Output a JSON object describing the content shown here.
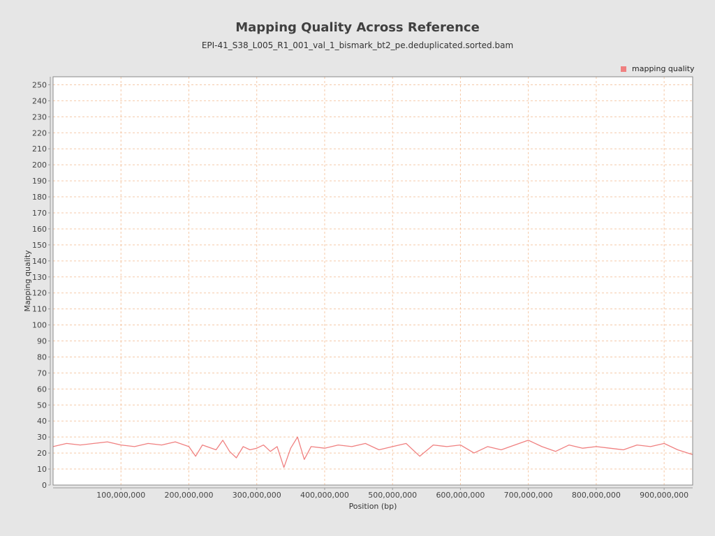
{
  "chart_data": {
    "type": "line",
    "title": "Mapping Quality Across Reference",
    "subtitle": "EPI-41_S38_L005_R1_001_val_1_bismark_bt2_pe.deduplicated.sorted.bam",
    "xlabel": "Position (bp)",
    "ylabel": "Mapping quality",
    "xlim": [
      0,
      942000000
    ],
    "ylim": [
      0,
      255
    ],
    "x_ticks": [
      100000000,
      200000000,
      300000000,
      400000000,
      500000000,
      600000000,
      700000000,
      800000000,
      900000000
    ],
    "x_tick_labels": [
      "100,000,000",
      "200,000,000",
      "300,000,000",
      "400,000,000",
      "500,000,000",
      "600,000,000",
      "700,000,000",
      "800,000,000",
      "900,000,000"
    ],
    "y_ticks": [
      0,
      10,
      20,
      30,
      40,
      50,
      60,
      70,
      80,
      90,
      100,
      110,
      120,
      130,
      140,
      150,
      160,
      170,
      180,
      190,
      200,
      210,
      220,
      230,
      240,
      250
    ],
    "y_tick_labels": [
      "0",
      "10",
      "20",
      "30",
      "40",
      "50",
      "60",
      "70",
      "80",
      "90",
      "100",
      "110",
      "120",
      "130",
      "140",
      "150",
      "160",
      "170",
      "180",
      "190",
      "200",
      "210",
      "220",
      "230",
      "240",
      "250"
    ],
    "grid": true,
    "legend_position": "top-right",
    "series": [
      {
        "name": "mapping quality",
        "color": "#f08080",
        "x": [
          0,
          20000000,
          40000000,
          60000000,
          80000000,
          100000000,
          120000000,
          140000000,
          160000000,
          180000000,
          200000000,
          210000000,
          220000000,
          240000000,
          250000000,
          260000000,
          270000000,
          280000000,
          290000000,
          300000000,
          310000000,
          320000000,
          330000000,
          340000000,
          350000000,
          360000000,
          370000000,
          380000000,
          400000000,
          420000000,
          440000000,
          460000000,
          480000000,
          500000000,
          520000000,
          540000000,
          560000000,
          580000000,
          600000000,
          620000000,
          640000000,
          660000000,
          680000000,
          700000000,
          720000000,
          740000000,
          760000000,
          780000000,
          800000000,
          820000000,
          840000000,
          860000000,
          880000000,
          900000000,
          920000000,
          942000000
        ],
        "y": [
          24,
          26,
          25,
          26,
          27,
          25,
          24,
          26,
          25,
          27,
          24,
          18,
          25,
          22,
          28,
          21,
          17,
          24,
          22,
          23,
          25,
          21,
          24,
          11,
          23,
          30,
          16,
          24,
          23,
          25,
          24,
          26,
          22,
          24,
          26,
          18,
          25,
          24,
          25,
          20,
          24,
          22,
          25,
          28,
          24,
          21,
          25,
          23,
          24,
          23,
          22,
          25,
          24,
          26,
          22,
          19
        ]
      }
    ]
  }
}
